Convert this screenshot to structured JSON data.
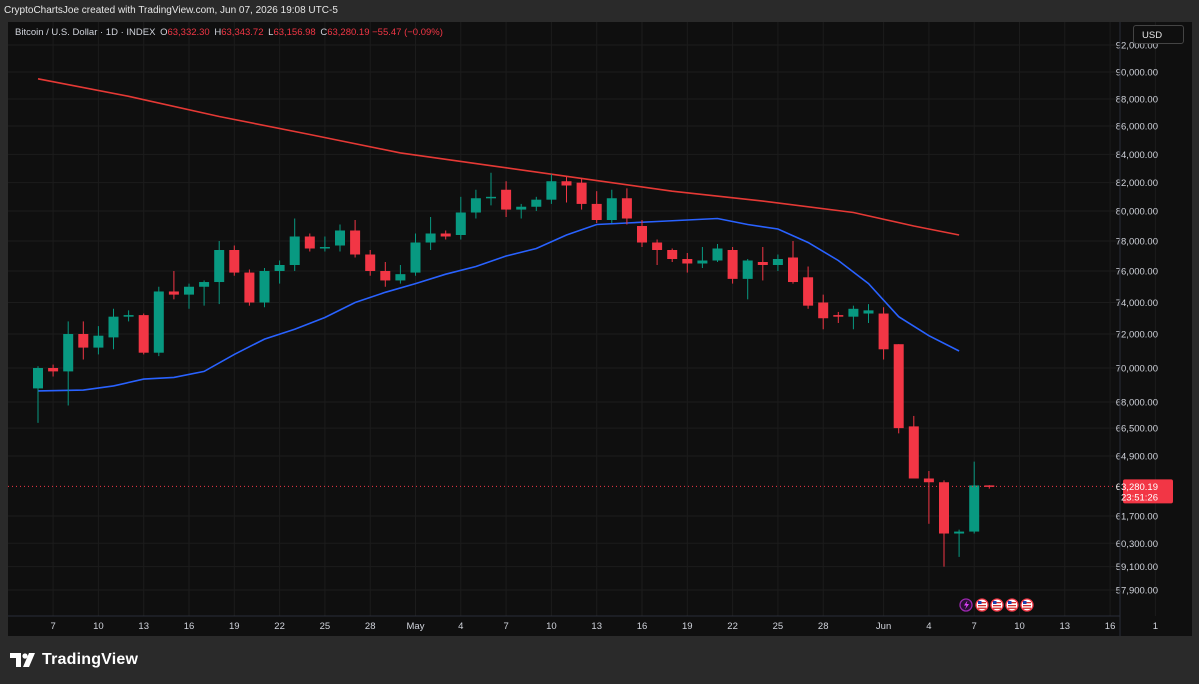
{
  "header": {
    "credit": "CryptoChartsJoe created with TradingView.com, Jun 07, 2026 19:08 UTC-5"
  },
  "legend": {
    "symbol": "Bitcoin / U.S. Dollar · 1D · INDEX",
    "open_label": "O",
    "open": "63,332.30",
    "high_label": "H",
    "high": "63,343.72",
    "low_label": "L",
    "low": "63,156.98",
    "close_label": "C",
    "close": "63,280.19",
    "change": "−55.47 (−0.09%)"
  },
  "currency_button": "USD",
  "price_tag": {
    "price": "63,280.19",
    "countdown": "23:51:26"
  },
  "footer": {
    "brand": "TradingView"
  },
  "colors": {
    "up": "#089981",
    "down": "#f23645",
    "ma_long": "#e53935",
    "ma_short": "#2962ff",
    "background": "#0f0f0f"
  },
  "icons": [
    "lightning-icon",
    "us-flag-icon",
    "us-flag-icon",
    "us-flag-icon",
    "us-flag-icon"
  ],
  "chart_data": {
    "type": "candlestick",
    "y_ticks": [
      {
        "label": "92,000.00",
        "value": 92000
      },
      {
        "label": "90,000.00",
        "value": 90000
      },
      {
        "label": "88,000.00",
        "value": 88000
      },
      {
        "label": "86,000.00",
        "value": 86000
      },
      {
        "label": "84,000.00",
        "value": 84000
      },
      {
        "label": "82,000.00",
        "value": 82000
      },
      {
        "label": "80,000.00",
        "value": 80000
      },
      {
        "label": "78,000.00",
        "value": 78000
      },
      {
        "label": "76,000.00",
        "value": 76000
      },
      {
        "label": "74,000.00",
        "value": 74000
      },
      {
        "label": "72,000.00",
        "value": 72000
      },
      {
        "label": "70,000.00",
        "value": 70000
      },
      {
        "label": "68,000.00",
        "value": 68000
      },
      {
        "label": "66,500.00",
        "value": 66500
      },
      {
        "label": "64,900.00",
        "value": 64900
      },
      {
        "label": "61,700.00",
        "value": 61700
      },
      {
        "label": "60,300.00",
        "value": 60300
      },
      {
        "label": "59,100.00",
        "value": 59100
      },
      {
        "label": "57,900.00",
        "value": 57900
      }
    ],
    "x_ticks": [
      {
        "label": "7",
        "i": 1
      },
      {
        "label": "10",
        "i": 4
      },
      {
        "label": "13",
        "i": 7
      },
      {
        "label": "16",
        "i": 10
      },
      {
        "label": "19",
        "i": 13
      },
      {
        "label": "22",
        "i": 16
      },
      {
        "label": "25",
        "i": 19
      },
      {
        "label": "28",
        "i": 22
      },
      {
        "label": "May",
        "i": 25
      },
      {
        "label": "4",
        "i": 28
      },
      {
        "label": "7",
        "i": 31
      },
      {
        "label": "10",
        "i": 34
      },
      {
        "label": "13",
        "i": 37
      },
      {
        "label": "16",
        "i": 40
      },
      {
        "label": "19",
        "i": 43
      },
      {
        "label": "22",
        "i": 46
      },
      {
        "label": "25",
        "i": 49
      },
      {
        "label": "28",
        "i": 52
      },
      {
        "label": "Jun",
        "i": 56
      },
      {
        "label": "4",
        "i": 59
      },
      {
        "label": "7",
        "i": 62
      },
      {
        "label": "10",
        "i": 65
      },
      {
        "label": "13",
        "i": 68
      },
      {
        "label": "16",
        "i": 71
      },
      {
        "label": "1",
        "i": 74
      }
    ],
    "ohlc": [
      [
        68800,
        70100,
        66800,
        70000
      ],
      [
        70000,
        70200,
        69500,
        69800
      ],
      [
        69800,
        72800,
        67800,
        72000
      ],
      [
        72000,
        72800,
        70500,
        71200
      ],
      [
        71200,
        72500,
        70800,
        71900
      ],
      [
        71800,
        73600,
        71100,
        73100
      ],
      [
        73100,
        73500,
        72800,
        73200
      ],
      [
        73200,
        73300,
        70800,
        70900
      ],
      [
        70900,
        75000,
        70700,
        74700
      ],
      [
        74700,
        76000,
        74200,
        74500
      ],
      [
        74500,
        75200,
        73600,
        75000
      ],
      [
        75000,
        75400,
        73800,
        75300
      ],
      [
        75300,
        78000,
        73900,
        77400
      ],
      [
        77400,
        77700,
        75700,
        75900
      ],
      [
        75900,
        76100,
        73800,
        74000
      ],
      [
        74000,
        76200,
        73700,
        76000
      ],
      [
        76000,
        76700,
        75200,
        76400
      ],
      [
        76400,
        79500,
        76000,
        78300
      ],
      [
        78300,
        78500,
        77300,
        77500
      ],
      [
        77500,
        78300,
        77300,
        77600
      ],
      [
        77700,
        79100,
        77300,
        78700
      ],
      [
        78700,
        79400,
        76900,
        77100
      ],
      [
        77100,
        77400,
        75700,
        76000
      ],
      [
        76000,
        76600,
        75000,
        75400
      ],
      [
        75400,
        76400,
        75200,
        75800
      ],
      [
        75900,
        78500,
        75700,
        77900
      ],
      [
        77900,
        79600,
        77400,
        78500
      ],
      [
        78500,
        78700,
        78100,
        78300
      ],
      [
        78400,
        81000,
        78100,
        79900
      ],
      [
        79900,
        81500,
        79500,
        80900
      ],
      [
        80900,
        82700,
        80400,
        81000
      ],
      [
        81500,
        82100,
        79600,
        80100
      ],
      [
        80100,
        80500,
        79500,
        80300
      ],
      [
        80300,
        81000,
        80000,
        80800
      ],
      [
        80800,
        82600,
        80500,
        82100
      ],
      [
        82100,
        82400,
        80600,
        81800
      ],
      [
        82000,
        82300,
        80100,
        80500
      ],
      [
        80500,
        81400,
        79200,
        79400
      ],
      [
        79400,
        81500,
        79200,
        80900
      ],
      [
        80900,
        81600,
        79100,
        79500
      ],
      [
        79000,
        79400,
        77600,
        77900
      ],
      [
        77900,
        78100,
        76400,
        77400
      ],
      [
        77400,
        77500,
        76600,
        76800
      ],
      [
        76800,
        77200,
        75900,
        76500
      ],
      [
        76500,
        77600,
        76200,
        76700
      ],
      [
        76700,
        77800,
        76600,
        77500
      ],
      [
        77400,
        77600,
        75200,
        75500
      ],
      [
        75500,
        76800,
        74200,
        76700
      ],
      [
        76600,
        77600,
        75400,
        76400
      ],
      [
        76400,
        77100,
        76000,
        76800
      ],
      [
        76900,
        78000,
        75200,
        75300
      ],
      [
        75600,
        76300,
        73600,
        73800
      ],
      [
        74000,
        74500,
        72300,
        73000
      ],
      [
        73200,
        73400,
        72700,
        73100
      ],
      [
        73100,
        73800,
        72300,
        73600
      ],
      [
        73300,
        73900,
        72700,
        73500
      ],
      [
        73300,
        73700,
        70500,
        71100
      ],
      [
        71400,
        71400,
        66200,
        66500
      ],
      [
        66600,
        67200,
        63700,
        63700
      ],
      [
        63700,
        64100,
        61300,
        63500
      ],
      [
        63500,
        63600,
        59100,
        60800
      ],
      [
        60800,
        61000,
        59600,
        60900
      ],
      [
        60900,
        64600,
        60800,
        63330
      ],
      [
        63332.3,
        63343.72,
        63156.98,
        63280.19
      ]
    ],
    "ma_short": [
      [
        0,
        68650
      ],
      [
        3,
        68700
      ],
      [
        5,
        68950
      ],
      [
        7,
        69350
      ],
      [
        9,
        69450
      ],
      [
        11,
        69800
      ],
      [
        13,
        70800
      ],
      [
        15,
        71700
      ],
      [
        17,
        72300
      ],
      [
        19,
        73050
      ],
      [
        21,
        74000
      ],
      [
        23,
        74650
      ],
      [
        25,
        75200
      ],
      [
        27,
        75800
      ],
      [
        29,
        76300
      ],
      [
        31,
        77000
      ],
      [
        33,
        77500
      ],
      [
        35,
        78400
      ],
      [
        37,
        79100
      ],
      [
        39,
        79200
      ],
      [
        41,
        79300
      ],
      [
        43,
        79400
      ],
      [
        45,
        79500
      ],
      [
        47,
        79100
      ],
      [
        49,
        78800
      ],
      [
        51,
        77900
      ],
      [
        53,
        76700
      ],
      [
        55,
        75200
      ],
      [
        57,
        73100
      ],
      [
        59,
        71900
      ],
      [
        61,
        71000
      ]
    ],
    "ma_long": [
      [
        0,
        89500
      ],
      [
        6,
        88200
      ],
      [
        12,
        86700
      ],
      [
        18,
        85400
      ],
      [
        24,
        84100
      ],
      [
        30,
        83200
      ],
      [
        36,
        82300
      ],
      [
        42,
        81400
      ],
      [
        48,
        80700
      ],
      [
        54,
        79900
      ],
      [
        58,
        79000
      ],
      [
        61,
        78400
      ]
    ],
    "last_price": 63280.19
  }
}
